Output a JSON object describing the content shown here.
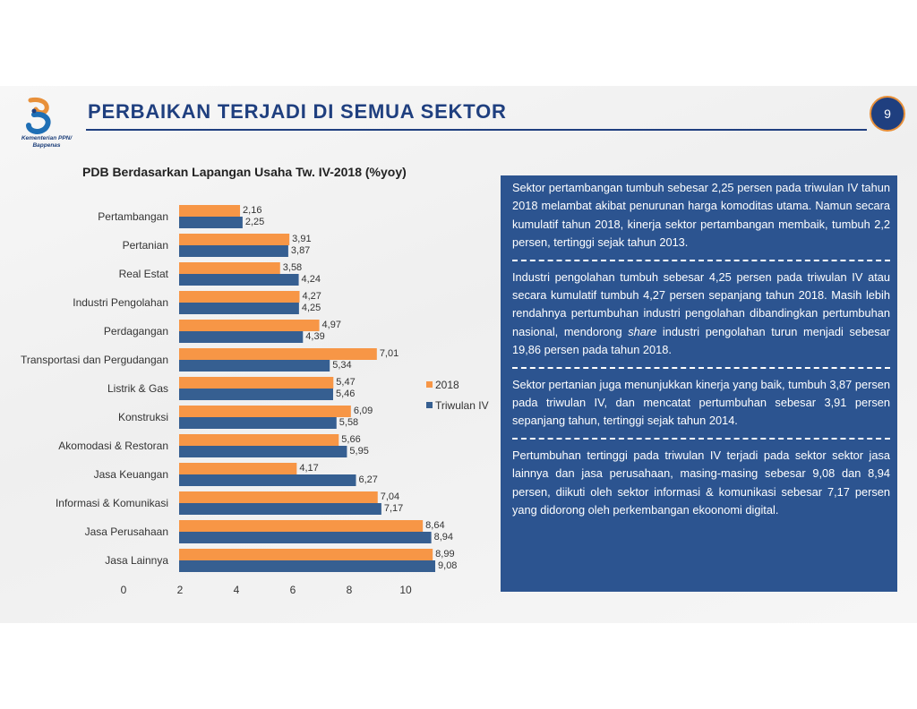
{
  "header": {
    "title": "PERBAIKAN TERJADI DI SEMUA SEKTOR",
    "page_number": "9",
    "logo_text_line1": "Kementerian PPN/",
    "logo_text_line2": "Bappenas"
  },
  "colors": {
    "series_2018": "#f79646",
    "series_q4": "#365f91",
    "brand_blue": "#1f3f7f",
    "panel_blue": "#2c5490"
  },
  "chart_data": {
    "type": "bar",
    "orientation": "horizontal",
    "title": "PDB Berdasarkan Lapangan Usaha Tw. IV-2018 (%yoy)",
    "categories": [
      "Pertambangan",
      "Pertanian",
      "Real Estat",
      "Industri Pengolahan",
      "Perdagangan",
      "Transportasi dan Pergudangan",
      "Listrik & Gas",
      "Konstruksi",
      "Akomodasi & Restoran",
      "Jasa Keuangan",
      "Informasi & Komunikasi",
      "Jasa Perusahaan",
      "Jasa Lainnya"
    ],
    "series": [
      {
        "name": "2018",
        "values": [
          2.16,
          3.91,
          3.58,
          4.27,
          4.97,
          7.01,
          5.47,
          6.09,
          5.66,
          4.17,
          7.04,
          8.64,
          8.99
        ],
        "labels": [
          "2,16",
          "3,91",
          "3,58",
          "4,27",
          "4,97",
          "7,01",
          "5,47",
          "6,09",
          "5,66",
          "4,17",
          "7,04",
          "8,64",
          "8,99"
        ]
      },
      {
        "name": "Triwulan IV",
        "values": [
          2.25,
          3.87,
          4.24,
          4.25,
          4.39,
          5.34,
          5.46,
          5.58,
          5.95,
          6.27,
          7.17,
          8.94,
          9.08
        ],
        "labels": [
          "2,25",
          "3,87",
          "4,24",
          "4,25",
          "4,39",
          "5,34",
          "5,46",
          "5,58",
          "5,95",
          "6,27",
          "7,17",
          "8,94",
          "9,08"
        ]
      }
    ],
    "xlim": [
      0,
      10
    ],
    "xticks": [
      "0",
      "2",
      "4",
      "6",
      "8",
      "10"
    ],
    "legend": "right",
    "grid": false
  },
  "info_panel": {
    "p1": "Sektor pertambangan tumbuh sebesar 2,25 persen pada triwulan IV tahun 2018 melambat akibat penurunan harga komoditas utama. Namun secara kumulatif tahun 2018, kinerja sektor pertambangan membaik, tumbuh 2,2 persen, tertinggi sejak tahun 2013.",
    "p2_a": "Industri pengolahan tumbuh sebesar 4,25 persen pada triwulan IV atau secara kumulatif tumbuh 4,27 persen sepanjang tahun 2018. Masih lebih rendahnya pertumbuhan industri pengolahan dibandingkan pertumbuhan nasional, mendorong ",
    "p2_em": "share",
    "p2_b": " industri pengolahan turun menjadi sebesar 19,86 persen pada tahun 2018.",
    "p3": "Sektor pertanian juga menunjukkan kinerja yang baik, tumbuh 3,87 persen pada triwulan IV, dan mencatat pertumbuhan sebesar 3,91 persen sepanjang tahun, tertinggi sejak tahun 2014.",
    "p4": "Pertumbuhan tertinggi pada triwulan IV terjadi pada sektor sektor jasa lainnya dan jasa perusahaan, masing-masing sebesar 9,08 dan 8,94 persen, diikuti oleh sektor informasi & komunikasi sebesar 7,17 persen yang didorong oleh perkembangan ekoonomi digital."
  }
}
